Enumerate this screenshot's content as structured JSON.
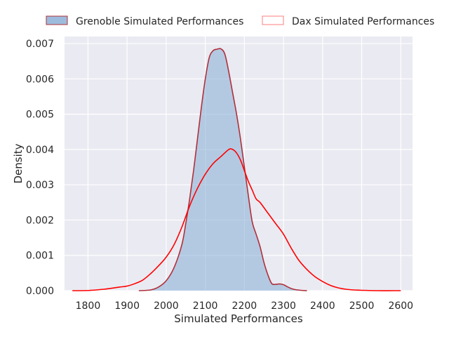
{
  "chart_data": {
    "type": "area",
    "title": "",
    "xlabel": "Simulated Performances",
    "ylabel": "Density",
    "xlim": [
      1740,
      2630
    ],
    "ylim": [
      0,
      0.0072
    ],
    "x_ticks": [
      1800,
      1900,
      2000,
      2100,
      2200,
      2300,
      2400,
      2500,
      2600
    ],
    "x_tick_labels": [
      "1800",
      "1900",
      "2000",
      "2100",
      "2200",
      "2300",
      "2400",
      "2500",
      "2600"
    ],
    "y_ticks": [
      0,
      0.001,
      0.002,
      0.003,
      0.004,
      0.005,
      0.006,
      0.007
    ],
    "y_tick_labels": [
      "0.000",
      "0.001",
      "0.002",
      "0.003",
      "0.004",
      "0.005",
      "0.006",
      "0.007"
    ],
    "grid": true,
    "legend_position": "top",
    "series": [
      {
        "name": "Grenoble Simulated Performances",
        "style": "filled",
        "fill_color": "#92b4d8",
        "line_color": "#b0303a",
        "x": [
          1930,
          1960,
          1980,
          2000,
          2020,
          2040,
          2050,
          2060,
          2070,
          2080,
          2090,
          2100,
          2110,
          2120,
          2130,
          2140,
          2150,
          2160,
          2170,
          2180,
          2190,
          2200,
          2210,
          2220,
          2230,
          2240,
          2250,
          2260,
          2270,
          2280,
          2290,
          2300,
          2310,
          2320,
          2330,
          2345,
          2360
        ],
        "y": [
          0,
          2e-05,
          0.0001,
          0.00028,
          0.00065,
          0.0013,
          0.0019,
          0.0026,
          0.0034,
          0.0043,
          0.0052,
          0.006,
          0.0066,
          0.0068,
          0.00684,
          0.00685,
          0.0067,
          0.0062,
          0.0056,
          0.005,
          0.0043,
          0.0035,
          0.0027,
          0.00195,
          0.0016,
          0.00125,
          0.0008,
          0.00045,
          0.0002,
          0.00018,
          0.00019,
          0.00017,
          0.00011,
          6e-05,
          3e-05,
          1e-05,
          0
        ]
      },
      {
        "name": "Dax Simulated Performances",
        "style": "line",
        "line_color": "#ff0000",
        "x": [
          1760,
          1800,
          1840,
          1880,
          1900,
          1920,
          1940,
          1960,
          1980,
          2000,
          2020,
          2040,
          2060,
          2080,
          2100,
          2120,
          2140,
          2160,
          2170,
          2180,
          2190,
          2200,
          2210,
          2220,
          2230,
          2240,
          2260,
          2280,
          2300,
          2320,
          2340,
          2360,
          2380,
          2400,
          2420,
          2440,
          2460,
          2480,
          2500,
          2540,
          2580,
          2600
        ],
        "y": [
          0,
          5e-06,
          4e-05,
          0.0001,
          0.00013,
          0.0002,
          0.0003,
          0.00048,
          0.0007,
          0.00095,
          0.0013,
          0.0018,
          0.0024,
          0.0029,
          0.0033,
          0.0036,
          0.0038,
          0.004,
          0.004,
          0.0039,
          0.0037,
          0.0034,
          0.0031,
          0.00285,
          0.0026,
          0.0025,
          0.0022,
          0.0019,
          0.0016,
          0.0012,
          0.00085,
          0.0006,
          0.0004,
          0.00026,
          0.00015,
          8e-05,
          4e-05,
          2e-05,
          1e-05,
          0,
          0,
          0
        ]
      }
    ]
  }
}
